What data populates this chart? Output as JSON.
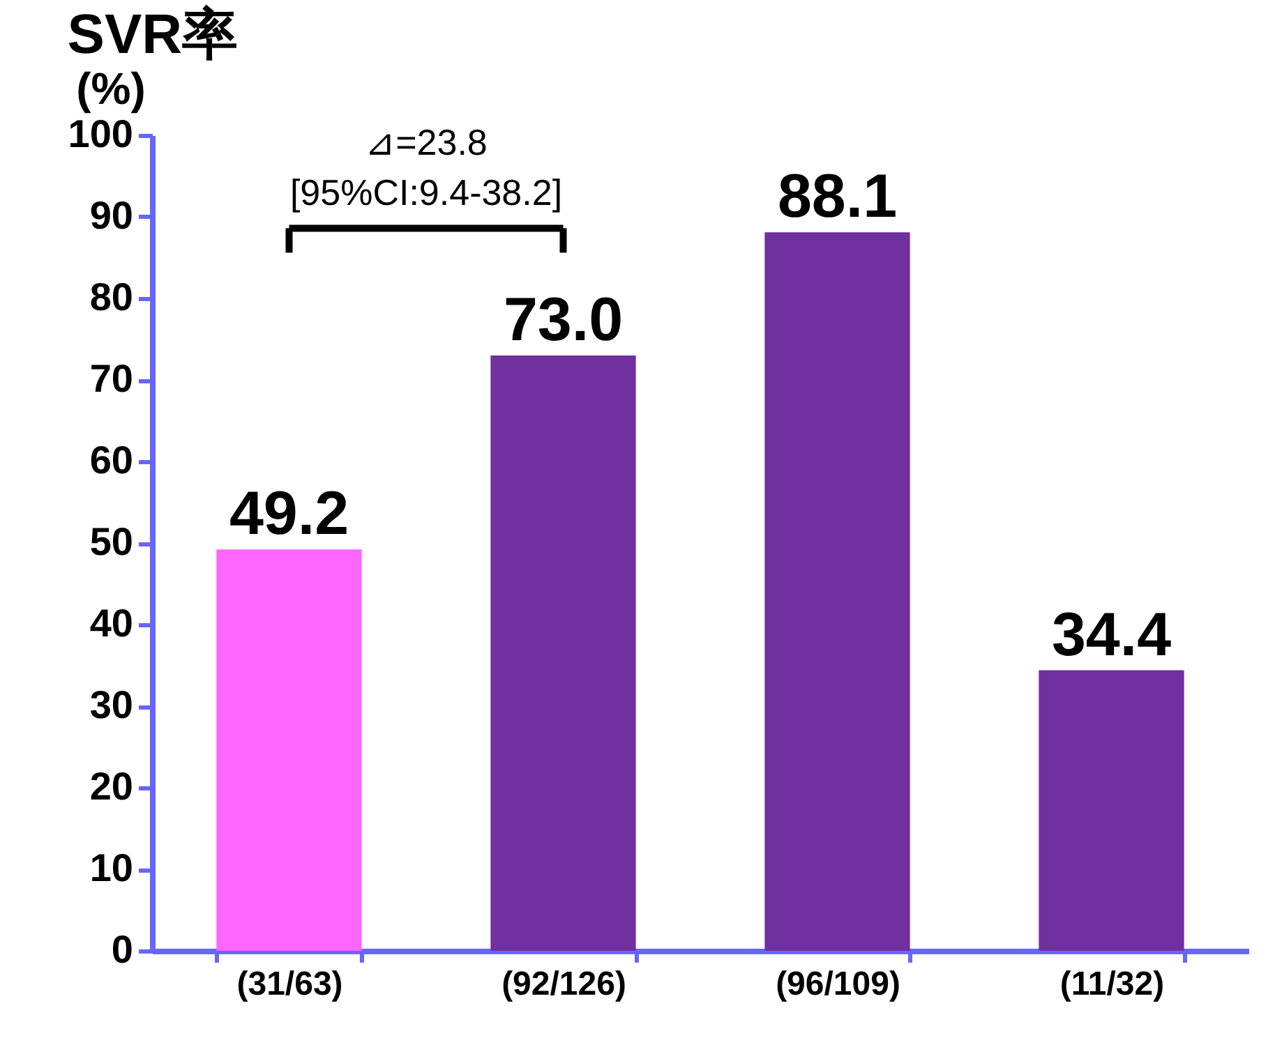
{
  "chart_data": {
    "type": "bar",
    "title": "SVR率",
    "ylabel": "(%)",
    "categories": [
      "(31/63)",
      "(92/126)",
      "(96/109)",
      "(11/32)"
    ],
    "values": [
      49.2,
      73.0,
      88.1,
      34.4
    ],
    "colors": [
      "#ff66ff",
      "#7030a0",
      "#7030a0",
      "#7030a0"
    ],
    "value_labels": [
      "49.2",
      "73.0",
      "88.1",
      "34.4"
    ],
    "ylim": [
      0,
      100
    ],
    "yticks": [
      0,
      10,
      20,
      30,
      40,
      50,
      60,
      70,
      80,
      90,
      100
    ],
    "annotations": [
      "⊿=23.8",
      "[95%CI:9.4-38.2]"
    ]
  }
}
